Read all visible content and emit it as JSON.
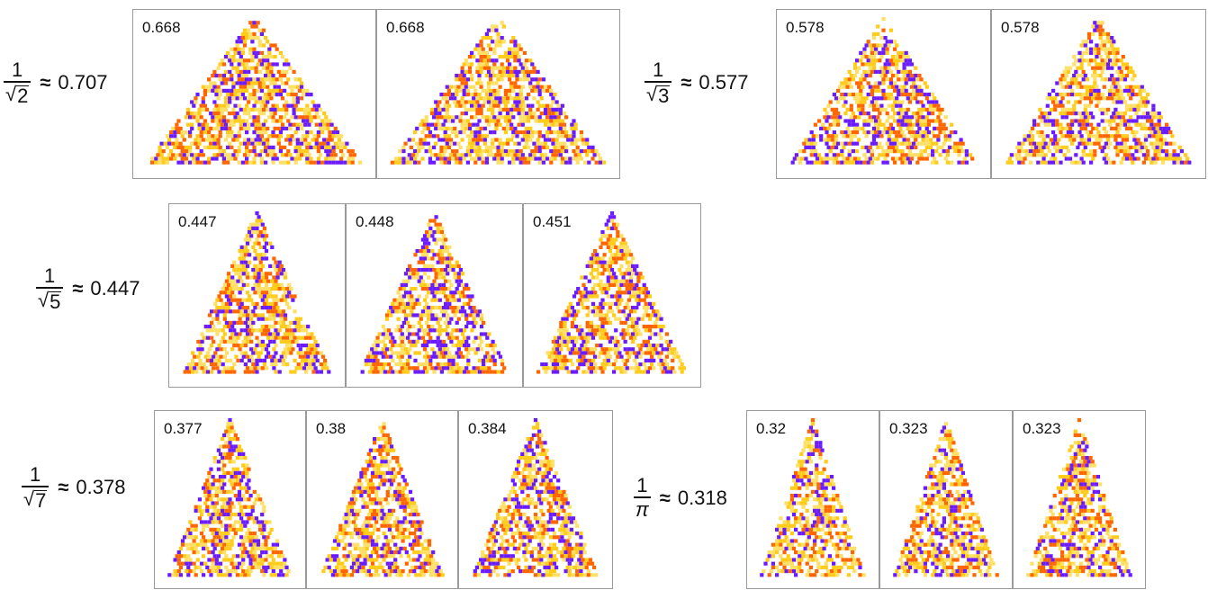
{
  "colors": {
    "purple": "#6a1bff",
    "orange": "#ff6600",
    "yellow": "#ffcc1a",
    "light": "#ffe066"
  },
  "groups": [
    {
      "id": "inv-sqrt2",
      "numerator": "1",
      "radicand": "2",
      "symbol": "",
      "approx": "≈",
      "value": "0.707",
      "panels": [
        {
          "label": "0.668",
          "seed": 11
        },
        {
          "label": "0.668",
          "seed": 23
        }
      ]
    },
    {
      "id": "inv-sqrt3",
      "numerator": "1",
      "radicand": "3",
      "symbol": "",
      "approx": "≈",
      "value": "0.577",
      "panels": [
        {
          "label": "0.578",
          "seed": 37
        },
        {
          "label": "0.578",
          "seed": 41
        }
      ]
    },
    {
      "id": "inv-sqrt5",
      "numerator": "1",
      "radicand": "5",
      "symbol": "",
      "approx": "≈",
      "value": "0.447",
      "panels": [
        {
          "label": "0.447",
          "seed": 53
        },
        {
          "label": "0.448",
          "seed": 67
        },
        {
          "label": "0.451",
          "seed": 71
        }
      ]
    },
    {
      "id": "inv-sqrt7",
      "numerator": "1",
      "radicand": "7",
      "symbol": "",
      "approx": "≈",
      "value": "0.378",
      "panels": [
        {
          "label": "0.377",
          "seed": 83
        },
        {
          "label": "0.38",
          "seed": 97
        },
        {
          "label": "0.384",
          "seed": 101
        }
      ]
    },
    {
      "id": "inv-pi",
      "numerator": "1",
      "radicand": "",
      "symbol": "π",
      "approx": "≈",
      "value": "0.318",
      "panels": [
        {
          "label": "0.32",
          "seed": 113
        },
        {
          "label": "0.323",
          "seed": 127
        },
        {
          "label": "0.323",
          "seed": 131
        }
      ]
    }
  ]
}
